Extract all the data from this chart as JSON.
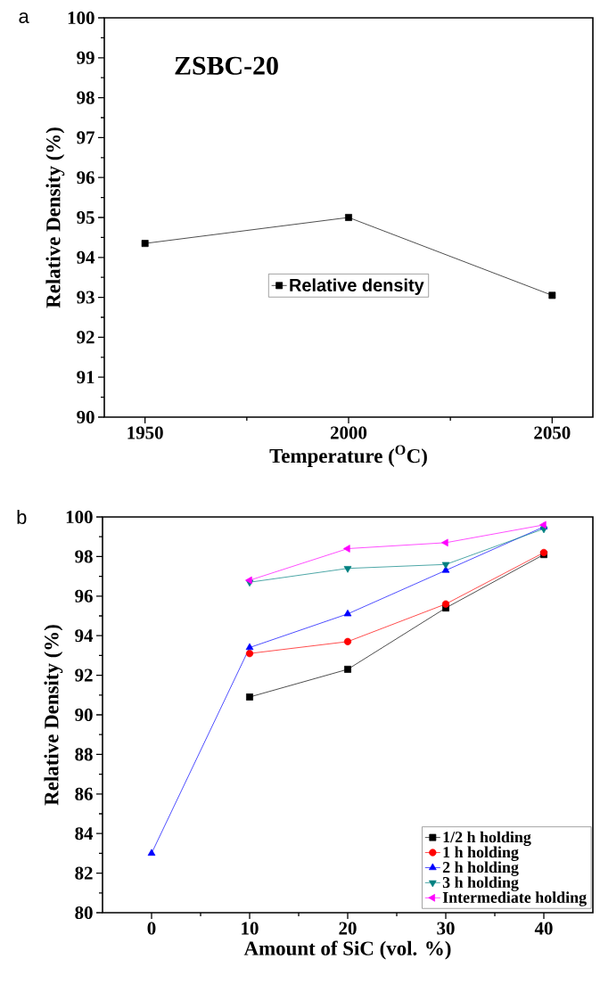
{
  "chart_data": [
    {
      "type": "line",
      "xlabel": "Temperature ($^{O}$C)",
      "ylabel": "Relative Density (%)",
      "annotations": [
        "a",
        "ZSBC-20"
      ],
      "xlim": [
        1940,
        2060
      ],
      "xticks": [
        1950,
        2000,
        2050
      ],
      "ylim": [
        90,
        100
      ],
      "yticks": [
        90,
        91,
        92,
        93,
        94,
        95,
        96,
        97,
        98,
        99,
        100
      ],
      "legend": "bottom",
      "marker": "square",
      "x": [
        1950,
        2000,
        2050
      ],
      "series": [
        {
          "name": "Relative density",
          "color": "#000000",
          "values": [
            94.35,
            95.0,
            93.05
          ]
        }
      ]
    },
    {
      "type": "line",
      "xlabel": "Amount of SiC (vol. %)",
      "ylabel": "Relative Density (%)",
      "annotations": [
        "b"
      ],
      "xlim": [
        -5,
        45
      ],
      "xticks": [
        0,
        10,
        20,
        30,
        40
      ],
      "ylim": [
        80,
        100
      ],
      "yticks": [
        80,
        82,
        84,
        86,
        88,
        90,
        92,
        94,
        96,
        98,
        100
      ],
      "legend": "bottom right",
      "series": [
        {
          "name": "1/2 h holding",
          "color": "#000000",
          "marker": "square",
          "x": [
            10,
            20,
            30,
            40
          ],
          "values": [
            90.9,
            92.3,
            95.4,
            98.1
          ]
        },
        {
          "name": "1 h holding",
          "color": "#ff0000",
          "marker": "circle",
          "x": [
            10,
            20,
            30,
            40
          ],
          "values": [
            93.1,
            93.7,
            95.6,
            98.2
          ]
        },
        {
          "name": "2 h holding",
          "color": "#0000ff",
          "marker": "triangle",
          "x": [
            0,
            10,
            20,
            30,
            40
          ],
          "values": [
            83.0,
            93.4,
            95.1,
            97.3,
            99.5
          ]
        },
        {
          "name": "3 h holding",
          "color": "#008080",
          "marker": "triangle-down",
          "x": [
            10,
            20,
            30,
            40
          ],
          "values": [
            96.7,
            97.4,
            97.6,
            99.4
          ]
        },
        {
          "name": "Intermediate holding",
          "color": "#ff00ff",
          "marker": "triangle-left",
          "x": [
            10,
            20,
            30,
            40
          ],
          "values": [
            96.8,
            98.4,
            98.7,
            99.6
          ]
        }
      ]
    }
  ]
}
